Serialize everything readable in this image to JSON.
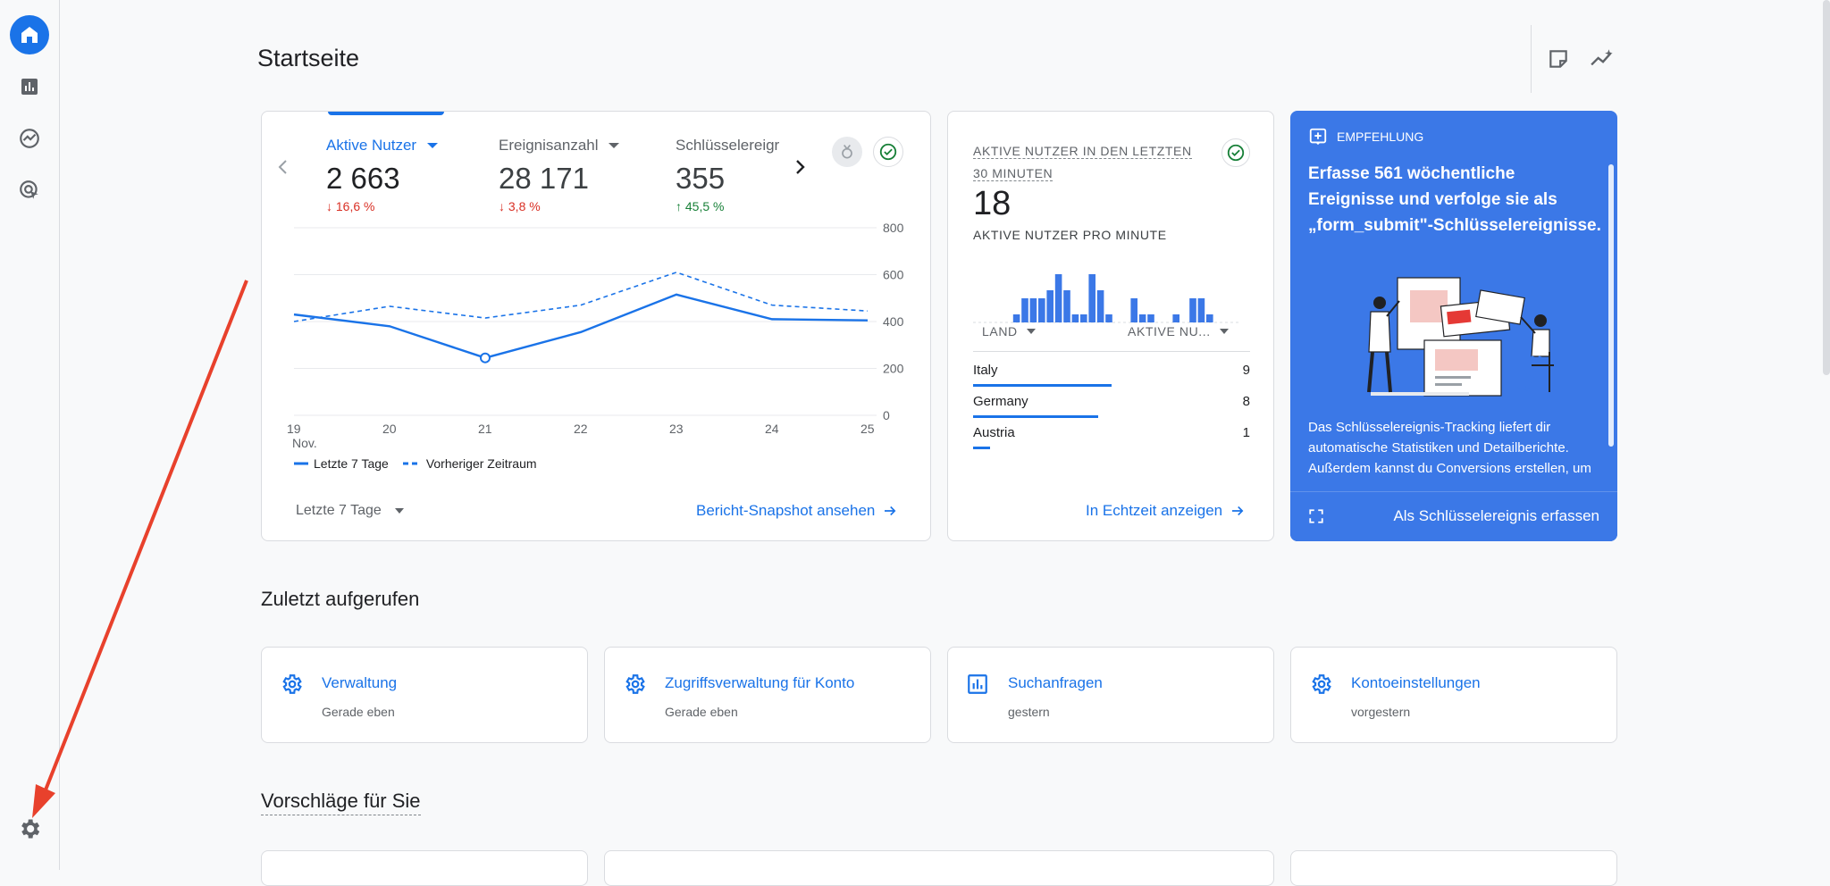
{
  "header": {
    "title": "Startseite"
  },
  "main_card": {
    "metrics": [
      {
        "label": "Aktive Nutzer",
        "value": "2 663",
        "delta": "16,6 %",
        "direction": "down"
      },
      {
        "label": "Ereignisanzahl",
        "value": "28 171",
        "delta": "3,8 %",
        "direction": "down"
      },
      {
        "label": "Schlüsselereigr",
        "value": "355",
        "delta": "45,5 %",
        "direction": "up"
      }
    ],
    "arrow_down": "↓",
    "arrow_up": "↑",
    "legend_current": "Letzte 7 Tage",
    "legend_previous": "Vorheriger Zeitraum",
    "date_range": "Letzte 7 Tage",
    "snapshot_link": "Bericht-Snapshot ansehen"
  },
  "chart_data": {
    "type": "line",
    "x": [
      "19",
      "20",
      "21",
      "22",
      "23",
      "24",
      "25"
    ],
    "x_sublabel": "Nov.",
    "ylim": [
      0,
      800
    ],
    "yticks": [
      "800",
      "600",
      "400",
      "200",
      "0"
    ],
    "series": [
      {
        "name": "Letzte 7 Tage",
        "values": [
          430,
          380,
          245,
          355,
          515,
          410,
          405
        ],
        "style": "solid"
      },
      {
        "name": "Vorheriger Zeitraum",
        "values": [
          400,
          465,
          415,
          470,
          610,
          470,
          445
        ],
        "style": "dashed"
      }
    ],
    "colors": {
      "line": "#1a73e8",
      "grid": "#e8eaed"
    },
    "grid": true,
    "legend": "bottom-left"
  },
  "realtime": {
    "title_line1": "AKTIVE NUTZER IN DEN LETZTEN",
    "title_line2": "30 MINUTEN",
    "value": "18",
    "subtitle": "AKTIVE NUTZER PRO MINUTE",
    "bars": [
      0,
      0,
      1,
      3,
      3,
      3,
      4,
      6,
      4,
      1,
      1,
      6,
      4,
      1,
      0,
      0,
      3,
      1,
      1,
      0,
      0,
      1,
      0,
      3,
      3,
      1,
      0,
      0
    ],
    "col_country": "LAND",
    "col_users": "AKTIVE NU...",
    "rows": [
      {
        "country": "Italy",
        "value": "9",
        "share": 0.5
      },
      {
        "country": "Germany",
        "value": "8",
        "share": 0.45
      },
      {
        "country": "Austria",
        "value": "1",
        "share": 0.06
      }
    ],
    "link": "In Echtzeit anzeigen"
  },
  "recommendation": {
    "badge": "EMPFEHLUNG",
    "title": "Erfasse 561 wöchentliche Ereignisse und verfolge sie als „form_submit\"-Schlüsselereignisse.",
    "body": "Das Schlüsselereignis-Tracking liefert dir automatische Statistiken und Detailberichte. Außerdem kannst du Conversions erstellen, um die Leistung deiner Google Ads",
    "action": "Als Schlüsselereignis erfassen"
  },
  "recent": {
    "title": "Zuletzt aufgerufen",
    "items": [
      {
        "title": "Verwaltung",
        "sub": "Gerade eben",
        "icon": "gear-icon"
      },
      {
        "title": "Zugriffsverwaltung für Konto",
        "sub": "Gerade eben",
        "icon": "gear-icon"
      },
      {
        "title": "Suchanfragen",
        "sub": "gestern",
        "icon": "bar-chart-icon"
      },
      {
        "title": "Kontoeinstellungen",
        "sub": "vorgestern",
        "icon": "gear-icon"
      }
    ]
  },
  "suggestions": {
    "title": "Vorschläge für Sie"
  },
  "colors": {
    "accent": "#1a73e8",
    "recommendation_bg": "#3b78e7",
    "annotation_arrow": "#e8412c"
  }
}
